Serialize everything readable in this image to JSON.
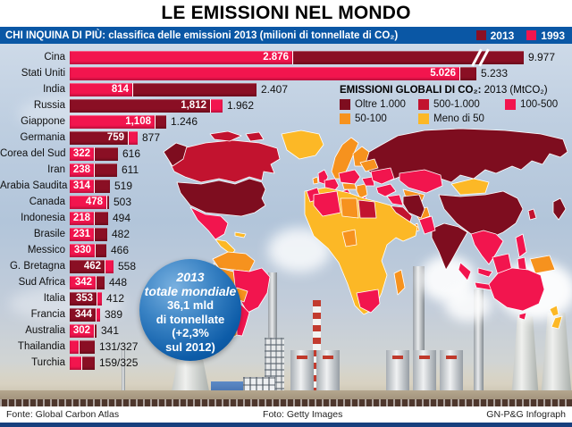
{
  "title": "LE EMISSIONI NEL MONDO",
  "header": {
    "text": "CHI INQUINA DI PIÙ: classifica delle emissioni 2013 (milioni di tonnellate di CO₂)",
    "legend": [
      {
        "label": "2013",
        "color": "#8a0f24"
      },
      {
        "label": "1993",
        "color": "#f2154e"
      }
    ]
  },
  "chart_data": {
    "type": "bar",
    "title": "CHI INQUINA DI PIÙ: classifica delle emissioni 2013",
    "unit": "milioni di tonnellate di CO₂",
    "series_labels": [
      "2013",
      "1993"
    ],
    "rows": [
      {
        "country": "Cina",
        "v2013": 9977,
        "v1993": 2876,
        "d2013": "9.977",
        "d1993": "2.876",
        "inside": "1993",
        "truncated": true
      },
      {
        "country": "Stati Uniti",
        "v2013": 5233,
        "v1993": 5026,
        "d2013": "5.233",
        "d1993": "5.026",
        "inside": "1993"
      },
      {
        "country": "India",
        "v2013": 2407,
        "v1993": 814,
        "d2013": "2.407",
        "d1993": "814",
        "inside": "1993"
      },
      {
        "country": "Russia",
        "v2013": 1812,
        "v1993": 1962,
        "d2013": "1,812",
        "d1993": "1.962",
        "inside": "2013"
      },
      {
        "country": "Giappone",
        "v2013": 1246,
        "v1993": 1108,
        "d2013": "1.246",
        "d1993": "1,108",
        "inside": "1993"
      },
      {
        "country": "Germania",
        "v2013": 759,
        "v1993": 877,
        "d2013": "759",
        "d1993": "877",
        "inside": "2013"
      },
      {
        "country": "Corea del Sud",
        "v2013": 616,
        "v1993": 322,
        "d2013": "616",
        "d1993": "322",
        "inside": "1993"
      },
      {
        "country": "Iran",
        "v2013": 611,
        "v1993": 238,
        "d2013": "611",
        "d1993": "238",
        "inside": "1993"
      },
      {
        "country": "Arabia Saudita",
        "v2013": 519,
        "v1993": 314,
        "d2013": "519",
        "d1993": "314",
        "inside": "1993"
      },
      {
        "country": "Canada",
        "v2013": 503,
        "v1993": 478,
        "d2013": "503",
        "d1993": "478",
        "inside": "1993"
      },
      {
        "country": "Indonesia",
        "v2013": 494,
        "v1993": 218,
        "d2013": "494",
        "d1993": "218",
        "inside": "1993"
      },
      {
        "country": "Brasile",
        "v2013": 482,
        "v1993": 231,
        "d2013": "482",
        "d1993": "231",
        "inside": "1993"
      },
      {
        "country": "Messico",
        "v2013": 466,
        "v1993": 330,
        "d2013": "466",
        "d1993": "330",
        "inside": "1993"
      },
      {
        "country": "G. Bretagna",
        "v2013": 462,
        "v1993": 558,
        "d2013": "462",
        "d1993": "558",
        "inside": "2013"
      },
      {
        "country": "Sud Africa",
        "v2013": 448,
        "v1993": 342,
        "d2013": "448",
        "d1993": "342",
        "inside": "1993"
      },
      {
        "country": "Italia",
        "v2013": 353,
        "v1993": 412,
        "d2013": "353",
        "d1993": "412",
        "inside": "2013"
      },
      {
        "country": "Francia",
        "v2013": 344,
        "v1993": 389,
        "d2013": "344",
        "d1993": "389",
        "inside": "2013"
      },
      {
        "country": "Australia",
        "v2013": 341,
        "v1993": 302,
        "d2013": "341",
        "d1993": "302",
        "inside": "1993"
      },
      {
        "country": "Thailandia",
        "v2013": 327,
        "v1993": 131,
        "d2013": "327",
        "d1993": "131",
        "combined": "131/327"
      },
      {
        "country": "Turchia",
        "v2013": 325,
        "v1993": 159,
        "d2013": "325",
        "d1993": "159",
        "combined": "159/325"
      }
    ]
  },
  "map_legend": {
    "title_bold": "EMISSIONI GLOBALI DI CO₂:",
    "title_rest": " 2013 (MtCO₂)",
    "items": [
      {
        "label": "Oltre 1.000",
        "color": "#7e0d1f"
      },
      {
        "label": "500-1.000",
        "color": "#c2132f"
      },
      {
        "label": "100-500",
        "color": "#f2154e"
      },
      {
        "label": "50-100",
        "color": "#f6921e"
      },
      {
        "label": "Meno di 50",
        "color": "#fcb826"
      }
    ]
  },
  "world_total": {
    "lines": [
      "2013",
      "totale mondiale",
      "36,1 mld",
      "di tonnellate",
      "(+2,3%",
      "sul 2012)"
    ]
  },
  "footer": {
    "left": "Fonte: Global Carbon Atlas",
    "center": "Foto: Getty Images",
    "right": "GN-P&G Infograph"
  },
  "colors": {
    "bar_2013": "#8a0f24",
    "bar_1993": "#f2154e",
    "header_blue": "#0a57a5",
    "footer_navy": "#173f7d"
  }
}
